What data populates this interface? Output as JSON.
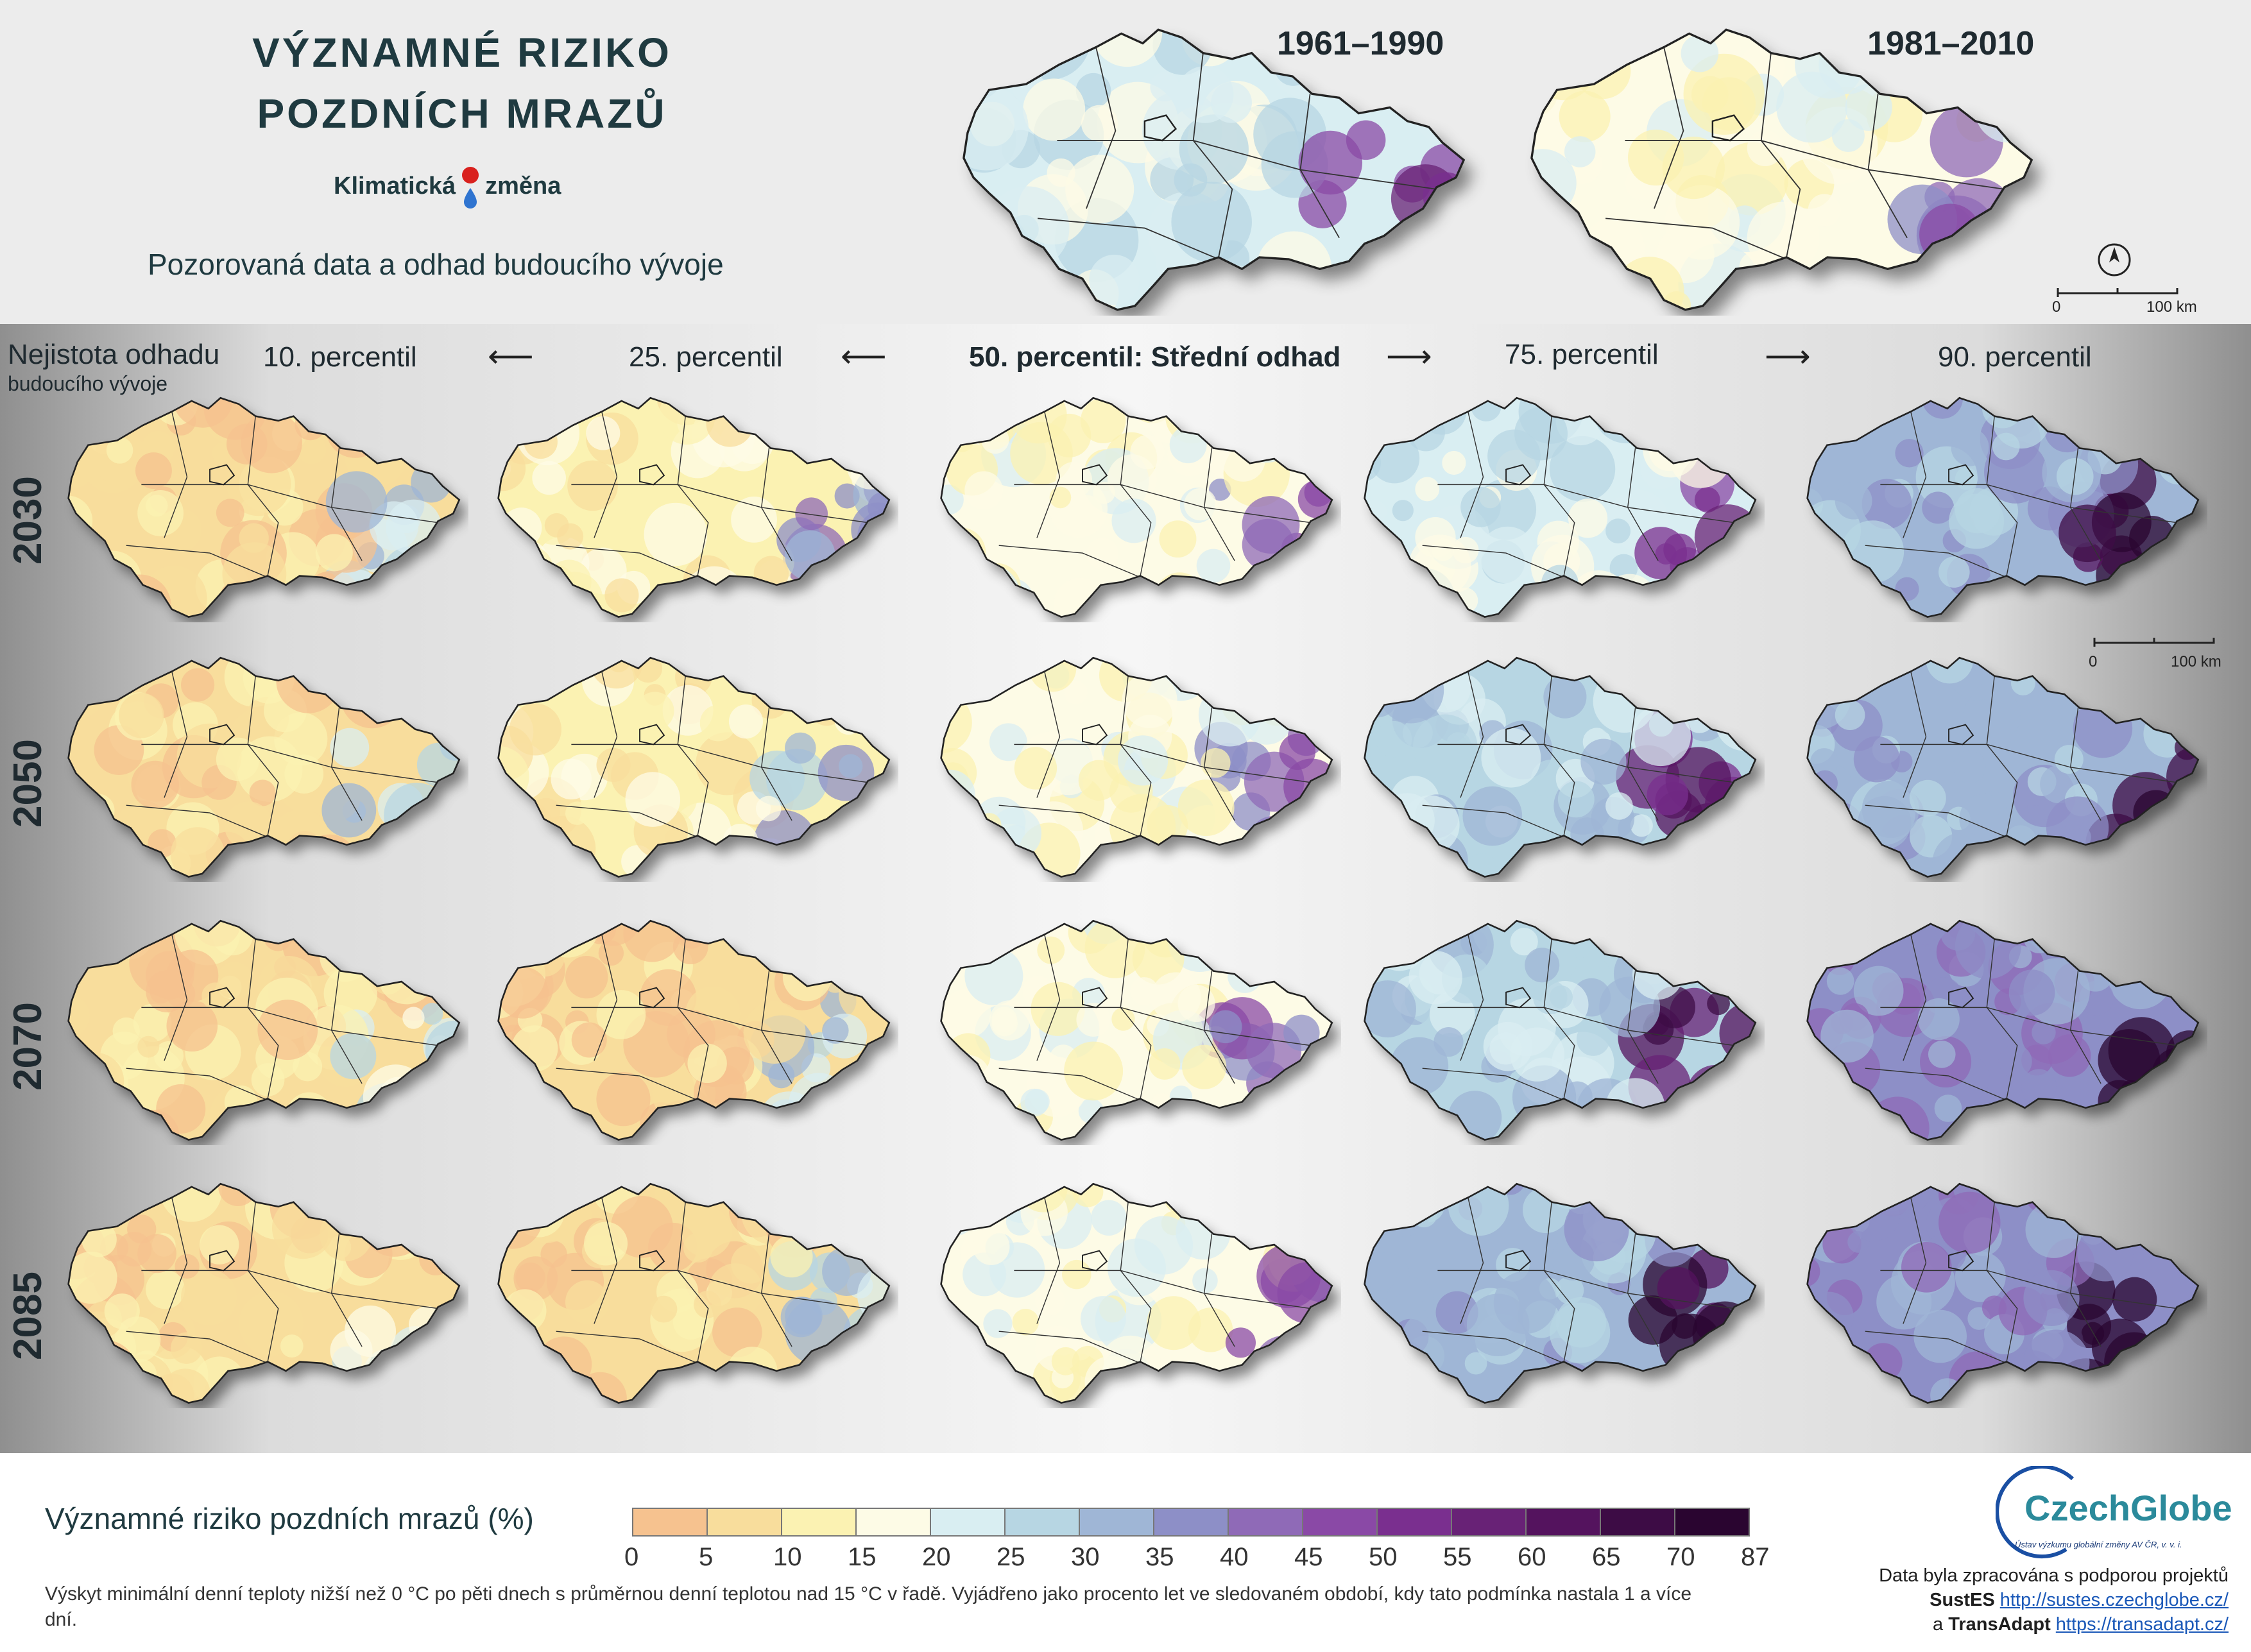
{
  "header": {
    "title_line1": "VÝZNAMNÉ RIZIKO",
    "title_line2": "POZDNÍCH MRAZŮ",
    "brand_left": "Klimatická",
    "brand_right": "změna",
    "subtitle": "Pozorovaná data a odhad budoucího vývoje"
  },
  "observed_periods": [
    "1961–1990",
    "1981–2010"
  ],
  "uncertainty_label": "Nejistota odhadu",
  "uncertainty_sublabel": "budoucího vývoje",
  "percentiles": [
    "10. percentil",
    "25. percentil",
    "50. percentil: Střední odhad",
    "75. percentil",
    "90. percentil"
  ],
  "years": [
    "2030",
    "2050",
    "2070",
    "2085"
  ],
  "scalebar": {
    "start": "0",
    "end": "100 km"
  },
  "legend": {
    "title": "Významné riziko pozdních mrazů (%)",
    "ticks": [
      "0",
      "5",
      "10",
      "15",
      "20",
      "25",
      "30",
      "35",
      "40",
      "45",
      "50",
      "55",
      "60",
      "65",
      "70",
      "87"
    ],
    "colors": [
      "#f6c28f",
      "#f8dd9c",
      "#fbf2b2",
      "#fdfbe6",
      "#d9eef2",
      "#b7d6e3",
      "#9fb6d6",
      "#8d8fc7",
      "#8f6ab7",
      "#8a49a6",
      "#7a2f8f",
      "#682276",
      "#54135e",
      "#3d0c45",
      "#2a0530"
    ],
    "note": "Výskyt minimální denní teploty nižší než 0 °C po pěti dnech s průměrnou denní teplotou nad 15 °C v řadě. Vyjádřeno jako procento let ve sledovaném období, kdy tato podmínka nastala 1 a více dní."
  },
  "credits": {
    "logo_name": "CzechGlobe",
    "logo_sub": "Ústav výzkumu globální změny AV ČR, v. v. i.",
    "line1": "Data byla zpracována s podporou projektů",
    "project1_name": "SustES",
    "project1_url": "http://sustes.czechglobe.cz/",
    "conj": "a",
    "project2_name": "TransAdapt",
    "project2_url": "https://transadapt.cz/"
  },
  "map_levels": {
    "observed": [
      0.55,
      0.4
    ],
    "grid": [
      [
        0.12,
        0.25,
        0.38,
        0.55,
        0.7
      ],
      [
        0.1,
        0.2,
        0.36,
        0.58,
        0.72
      ],
      [
        0.08,
        0.18,
        0.34,
        0.65,
        0.85
      ],
      [
        0.07,
        0.16,
        0.32,
        0.7,
        0.9
      ]
    ]
  }
}
